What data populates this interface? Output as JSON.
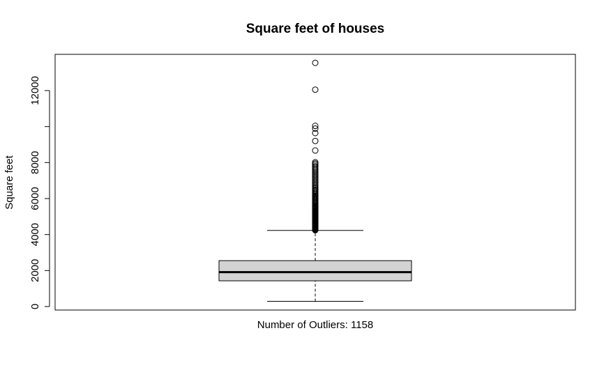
{
  "chart_data": {
    "type": "boxplot",
    "title": "Square feet of houses",
    "ylabel": "Square feet",
    "xlabel": "Number of Outliers: 1158",
    "ylim": [
      0,
      13540
    ],
    "y_ticks": [
      0,
      2000,
      4000,
      6000,
      8000,
      10000,
      12000
    ],
    "y_tick_labels": [
      "0",
      "2000",
      "4000",
      "6000",
      "8000",
      "",
      "12000"
    ],
    "box": {
      "whisker_low": 290,
      "q1": 1430,
      "median": 1910,
      "q3": 2550,
      "whisker_high": 4230
    },
    "outlier_count": 1158,
    "outliers": [
      4240,
      4260,
      4280,
      4300,
      4320,
      4340,
      4360,
      4380,
      4400,
      4420,
      4440,
      4460,
      4480,
      4500,
      4520,
      4550,
      4580,
      4610,
      4640,
      4670,
      4700,
      4730,
      4760,
      4790,
      4820,
      4850,
      4880,
      4910,
      4940,
      4970,
      5000,
      5040,
      5080,
      5120,
      5160,
      5200,
      5240,
      5280,
      5320,
      5360,
      5400,
      5440,
      5480,
      5520,
      5560,
      5600,
      5650,
      5700,
      5750,
      5800,
      5850,
      5900,
      5950,
      6000,
      6050,
      6100,
      6150,
      6200,
      6260,
      6320,
      6380,
      6440,
      6500,
      6560,
      6620,
      6700,
      6780,
      6860,
      6940,
      7020,
      7100,
      7180,
      7260,
      7340,
      7420,
      7500,
      7580,
      7650,
      7730,
      7800,
      7880,
      7950,
      8020,
      8670,
      9200,
      9640,
      9890,
      10040,
      12050,
      13540
    ],
    "colors": {
      "box_fill": "#d3d3d3",
      "stroke": "#000000"
    },
    "grid": false
  }
}
